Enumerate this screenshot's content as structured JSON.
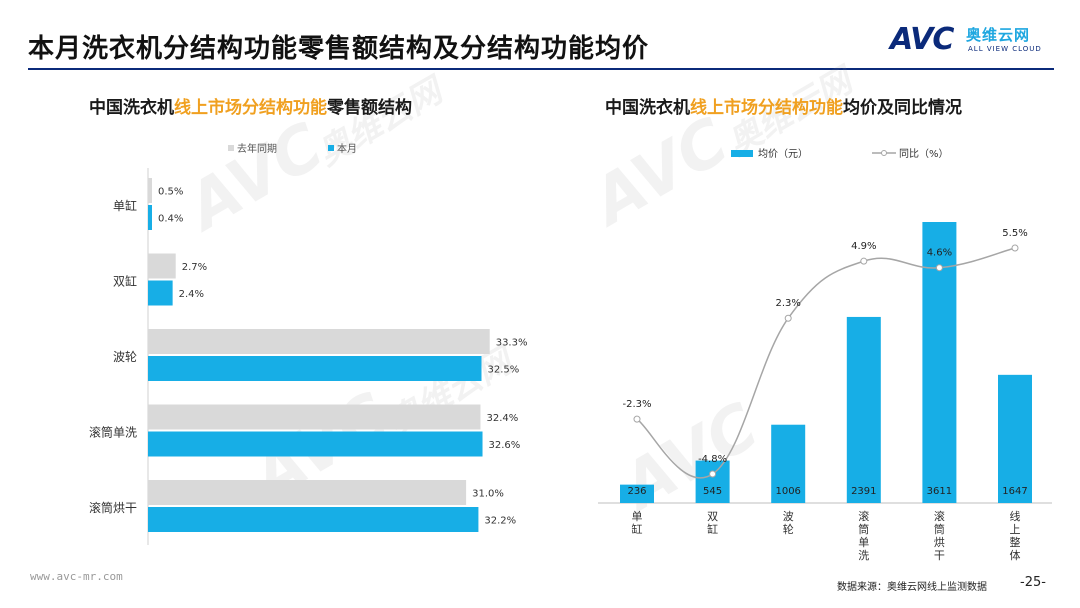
{
  "page": {
    "title": "本月洗衣机分结构功能零售额结构及分结构功能均价",
    "logo_cn": "奥维云网",
    "logo_en": "ALL VIEW CLOUD",
    "logo_mark": "AVC",
    "watermark_mark": "AVC",
    "watermark_cn": "奥维云网",
    "watermark_en": "ALL VIEW CLOUD",
    "footer_url": "www.avc-mr.com",
    "footer_source": "数据来源：奥维云网线上监测数据",
    "page_number": "-25-"
  },
  "colors": {
    "last_year": "#d9d9d9",
    "this_month": "#17aee6",
    "line": "#a6a6a6",
    "highlight": "#f0a020",
    "title_rule": "#0b2a7a"
  },
  "chart_data": [
    {
      "type": "bar",
      "orientation": "horizontal",
      "title_parts": [
        "中国洗衣机",
        "线上市场分结构功能",
        "零售额结构"
      ],
      "categories": [
        "单缸",
        "双缸",
        "波轮",
        "滚筒单洗",
        "滚筒烘干"
      ],
      "series": [
        {
          "name": "去年同期",
          "values": [
            0.5,
            2.7,
            33.3,
            32.4,
            31.0
          ],
          "labels": [
            "0.5%",
            "2.7%",
            "33.3%",
            "32.4%",
            "31.0%"
          ]
        },
        {
          "name": "本月",
          "values": [
            0.4,
            2.4,
            32.5,
            32.6,
            32.2
          ],
          "labels": [
            "0.4%",
            "2.4%",
            "32.5%",
            "32.6%",
            "32.2%"
          ]
        }
      ],
      "xlim": [
        0,
        36
      ],
      "legend": "top"
    },
    {
      "type": "bar+line",
      "title_parts": [
        "中国洗衣机",
        "线上市场分结构功能",
        "均价及同比情况"
      ],
      "categories": [
        "单缸",
        "双缸",
        "波轮",
        "滚筒单洗",
        "滚筒烘干",
        "线上整体"
      ],
      "bar_series": {
        "name": "均价（元）",
        "values": [
          236,
          545,
          1006,
          2391,
          3611,
          1647
        ],
        "labels": [
          "236",
          "545",
          "1006",
          "2391",
          "3611",
          "1647"
        ]
      },
      "line_series": {
        "name": "同比（%）",
        "values": [
          -2.3,
          -4.8,
          2.3,
          4.9,
          4.6,
          5.5
        ],
        "labels": [
          "-2.3%",
          "-4.8%",
          "2.3%",
          "4.9%",
          "4.6%",
          "5.5%"
        ]
      },
      "bar_ylim": [
        0,
        3611
      ],
      "line_ylim": [
        -6.2,
        6.4
      ],
      "legend": "top"
    }
  ]
}
